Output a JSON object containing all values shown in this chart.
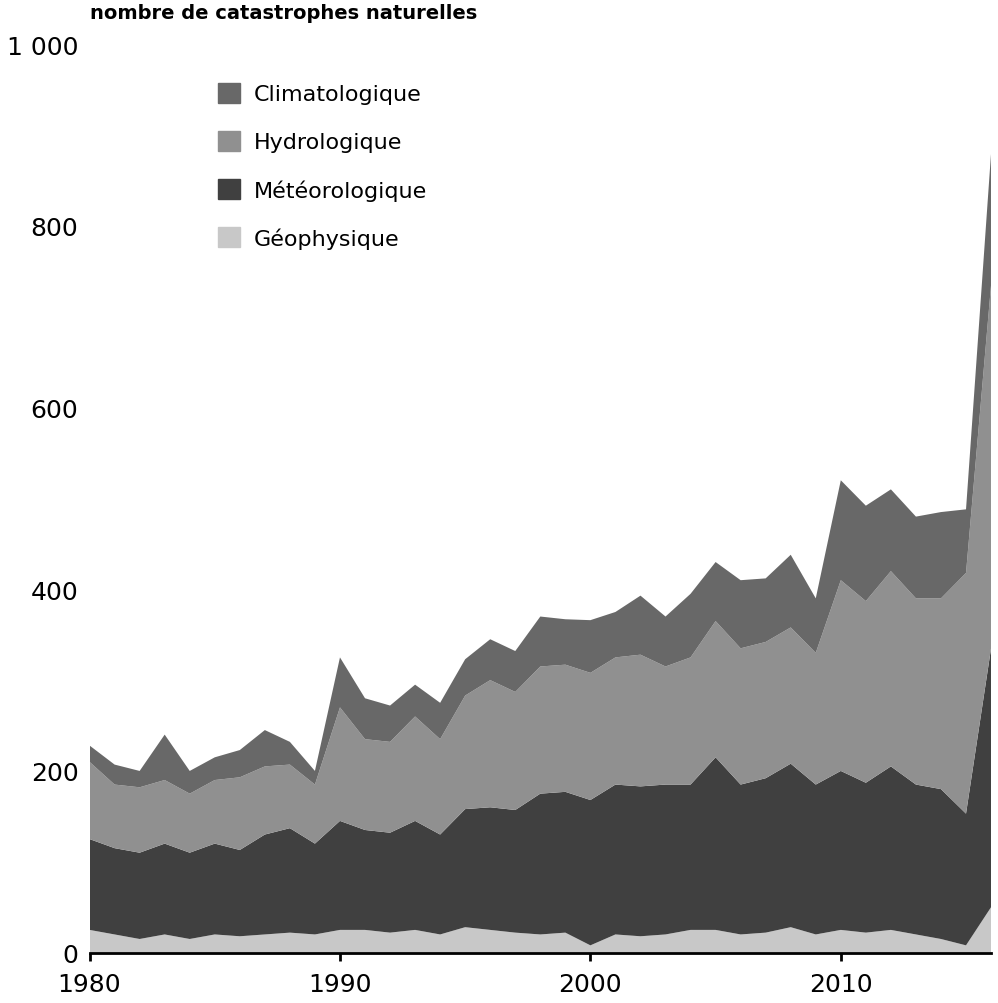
{
  "years": [
    1980,
    1981,
    1982,
    1983,
    1984,
    1985,
    1986,
    1987,
    1988,
    1989,
    1990,
    1991,
    1992,
    1993,
    1994,
    1995,
    1996,
    1997,
    1998,
    1999,
    2000,
    2001,
    2002,
    2003,
    2004,
    2005,
    2006,
    2007,
    2008,
    2009,
    2010,
    2011,
    2012,
    2013,
    2014,
    2015,
    2016
  ],
  "geophysique": [
    25,
    20,
    15,
    20,
    15,
    20,
    18,
    20,
    22,
    20,
    25,
    25,
    22,
    25,
    20,
    28,
    25,
    22,
    20,
    22,
    8,
    20,
    18,
    20,
    25,
    25,
    20,
    22,
    28,
    20,
    25,
    22,
    25,
    20,
    15,
    8,
    50
  ],
  "meteorologique": [
    100,
    95,
    95,
    100,
    95,
    100,
    95,
    110,
    115,
    100,
    120,
    110,
    110,
    120,
    110,
    130,
    135,
    135,
    155,
    155,
    160,
    165,
    165,
    165,
    160,
    190,
    165,
    170,
    180,
    165,
    175,
    165,
    180,
    165,
    165,
    145,
    285
  ],
  "hydrologique": [
    85,
    70,
    72,
    70,
    65,
    70,
    80,
    75,
    70,
    65,
    125,
    100,
    100,
    115,
    105,
    125,
    140,
    130,
    140,
    140,
    140,
    140,
    145,
    130,
    140,
    150,
    150,
    150,
    150,
    145,
    210,
    200,
    215,
    205,
    210,
    265,
    400
  ],
  "climatologique": [
    18,
    22,
    18,
    50,
    25,
    25,
    30,
    40,
    25,
    15,
    55,
    45,
    40,
    35,
    40,
    40,
    45,
    45,
    55,
    50,
    58,
    50,
    65,
    55,
    70,
    65,
    75,
    70,
    80,
    60,
    110,
    105,
    90,
    90,
    95,
    70,
    145
  ],
  "colors": {
    "geophysique": "#c8c8c8",
    "meteorologique": "#404040",
    "hydrologique": "#909090",
    "climatologique": "#686868"
  },
  "legend_labels": [
    "Climatologique",
    "Hydrologique",
    "Météorologique",
    "Géophysique"
  ],
  "legend_colors_order": [
    "climatologique",
    "hydrologique",
    "meteorologique",
    "geophysique"
  ],
  "ylabel": "nombre de catastrophes naturelles",
  "ytick_top": "1 000",
  "yticks_vals": [
    0,
    200,
    400,
    600,
    800
  ],
  "xticks": [
    1980,
    1990,
    2000,
    2010
  ],
  "ylim": [
    0,
    1000
  ],
  "xlim_start": 1980,
  "xlim_end": 2016
}
